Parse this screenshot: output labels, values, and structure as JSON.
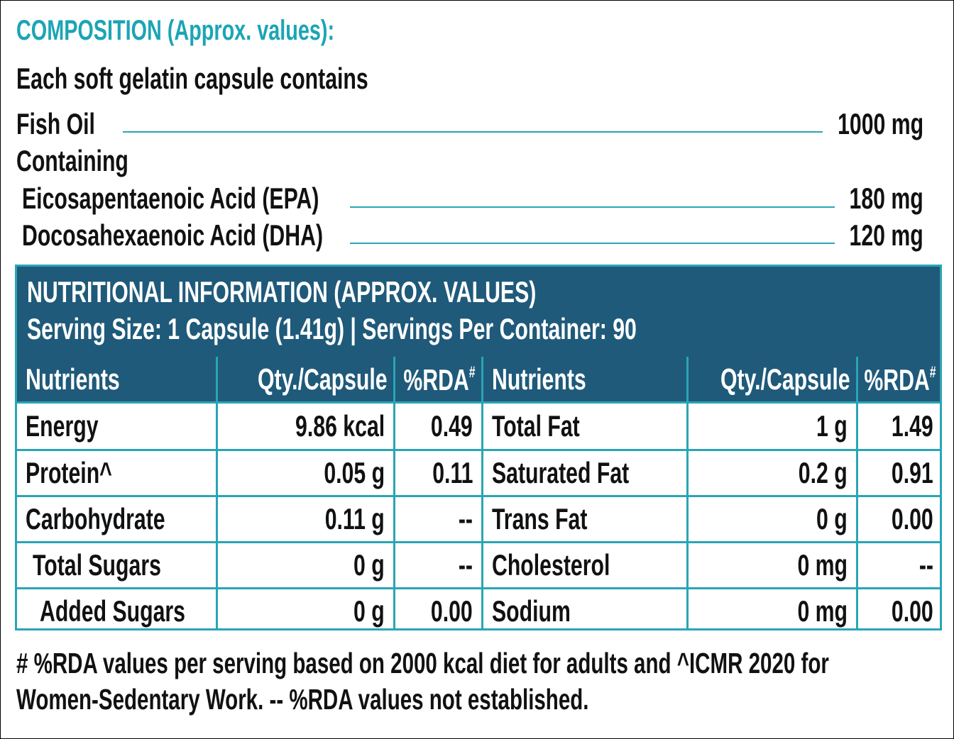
{
  "composition": {
    "title": "COMPOSITION (Approx. values):",
    "intro": "Each soft gelatin capsule contains",
    "main": {
      "name": "Fish Oil",
      "amount": "1000 mg"
    },
    "containing": "Containing",
    "items": [
      {
        "name": "Eicosapentaenoic Acid (EPA)",
        "amount": "180 mg"
      },
      {
        "name": "Docosahexaenoic Acid (DHA)",
        "amount": "120 mg"
      }
    ]
  },
  "table": {
    "title": "NUTRITIONAL INFORMATION (APPROX. VALUES)",
    "serving": "Serving Size: 1 Capsule (1.41g) | Servings Per Container: 90",
    "columns": [
      {
        "label": "Nutrients"
      },
      {
        "label": "Qty./Capsule"
      },
      {
        "label": "%RDA",
        "sup": "#"
      },
      {
        "label": "Nutrients"
      },
      {
        "label": "Qty./Capsule"
      },
      {
        "label": "%RDA",
        "sup": "#"
      }
    ],
    "rows": [
      [
        "Energy",
        "9.86 kcal",
        "0.49",
        "Total Fat",
        "1 g",
        "1.49"
      ],
      [
        "Protein^",
        "0.05 g",
        "0.11",
        "Saturated Fat",
        "0.2 g",
        "0.91"
      ],
      [
        "Carbohydrate",
        "0.11 g",
        "--",
        "Trans Fat",
        "0 g",
        "0.00"
      ],
      [
        "Total Sugars",
        "0 g",
        "--",
        "Cholesterol",
        "0 mg",
        "--"
      ],
      [
        "Added Sugars",
        "0 g",
        "0.00",
        "Sodium",
        "0 mg",
        "0.00"
      ]
    ]
  },
  "footnote": [
    "# %RDA values per serving based on 2000 kcal diet for adults and ^ICMR 2020 for",
    "Women-Sedentary Work. -- %RDA values not established."
  ]
}
